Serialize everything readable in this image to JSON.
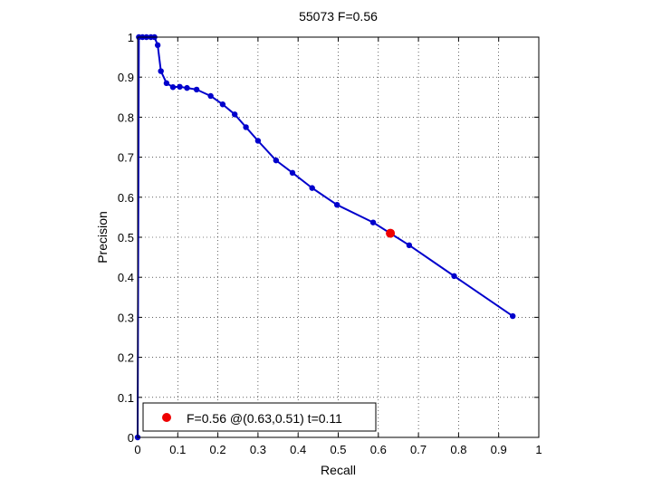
{
  "chart_data": {
    "type": "line",
    "title": "55073 F=0.56",
    "xlabel": "Recall",
    "ylabel": "Precision",
    "xlim": [
      0,
      1
    ],
    "ylim": [
      0,
      1
    ],
    "grid": true,
    "x_ticks": [
      0,
      0.1,
      0.2,
      0.3,
      0.4,
      0.5,
      0.6,
      0.7,
      0.8,
      0.9,
      1
    ],
    "y_ticks": [
      0,
      0.1,
      0.2,
      0.3,
      0.4,
      0.5,
      0.6,
      0.7,
      0.8,
      0.9,
      1
    ],
    "x_tick_labels": [
      "0",
      "0.1",
      "0.2",
      "0.3",
      "0.4",
      "0.5",
      "0.6",
      "0.7",
      "0.8",
      "0.9",
      "1"
    ],
    "y_tick_labels": [
      "0",
      "0.1",
      "0.2",
      "0.3",
      "0.4",
      "0.5",
      "0.6",
      "0.7",
      "0.8",
      "0.9",
      "1"
    ],
    "series": [
      {
        "color": "#0000cc",
        "marker": "dot",
        "points": [
          [
            0.0,
            0.0
          ],
          [
            0.003,
            1.0
          ],
          [
            0.012,
            1.0
          ],
          [
            0.022,
            1.0
          ],
          [
            0.033,
            1.0
          ],
          [
            0.042,
            1.0
          ],
          [
            0.05,
            0.98
          ],
          [
            0.058,
            0.915
          ],
          [
            0.072,
            0.885
          ],
          [
            0.088,
            0.875
          ],
          [
            0.105,
            0.876
          ],
          [
            0.123,
            0.873
          ],
          [
            0.147,
            0.869
          ],
          [
            0.182,
            0.853
          ],
          [
            0.212,
            0.832
          ],
          [
            0.242,
            0.807
          ],
          [
            0.27,
            0.775
          ],
          [
            0.3,
            0.741
          ],
          [
            0.345,
            0.692
          ],
          [
            0.386,
            0.661
          ],
          [
            0.435,
            0.623
          ],
          [
            0.497,
            0.581
          ],
          [
            0.587,
            0.537
          ],
          [
            0.677,
            0.48
          ],
          [
            0.789,
            0.403
          ],
          [
            0.935,
            0.303
          ]
        ]
      }
    ],
    "highlight_point": {
      "x": 0.63,
      "y": 0.51,
      "color": "#ee0000"
    },
    "legend": {
      "position": "bottom-left",
      "label": "F=0.56 @(0.63,0.51) t=0.11"
    }
  }
}
